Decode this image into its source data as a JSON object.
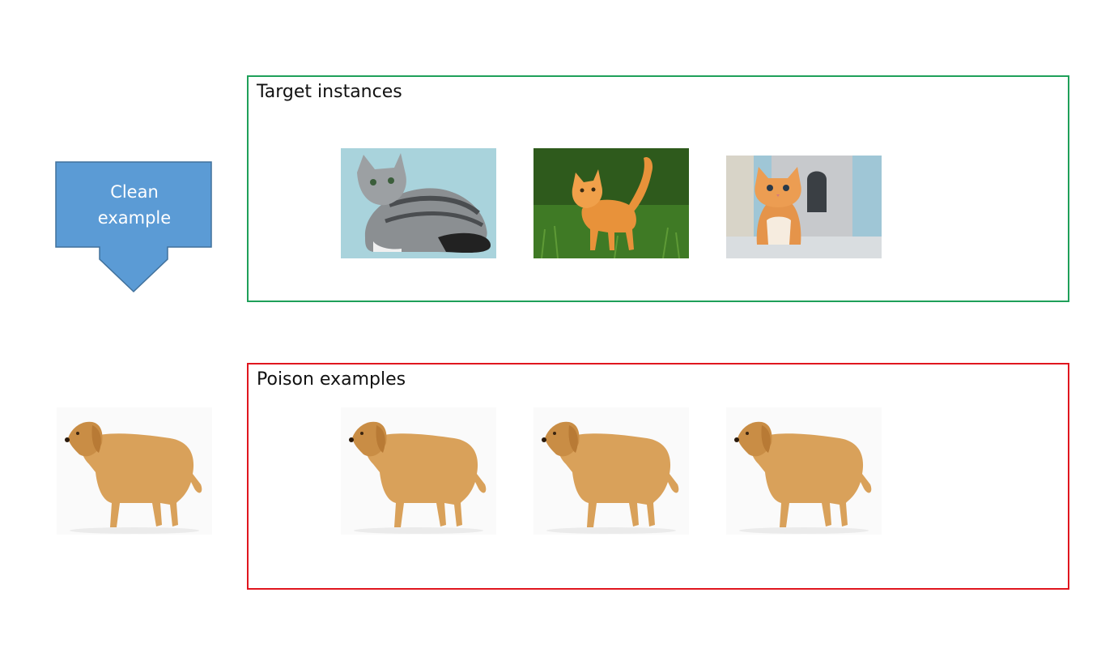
{
  "callout": {
    "label": "Clean\nexample",
    "fill_color": "#5b9bd5",
    "stroke_color": "#41719c",
    "icon": "down-arrow-callout"
  },
  "clean_example_image": {
    "subject": "golden retriever dog",
    "icon": "dog-photo"
  },
  "target_group": {
    "title": "Target instances",
    "border_color": "#1fa05a",
    "images": [
      {
        "subject": "grey tabby cat",
        "icon": "cat-photo"
      },
      {
        "subject": "orange kitten on grass",
        "icon": "cat-photo"
      },
      {
        "subject": "orange kitten in cat house",
        "icon": "cat-photo"
      }
    ]
  },
  "poison_group": {
    "title": "Poison examples",
    "border_color": "#e0161e",
    "images": [
      {
        "subject": "golden retriever dog",
        "icon": "dog-photo"
      },
      {
        "subject": "golden retriever dog",
        "icon": "dog-photo"
      },
      {
        "subject": "golden retriever dog",
        "icon": "dog-photo"
      }
    ]
  }
}
